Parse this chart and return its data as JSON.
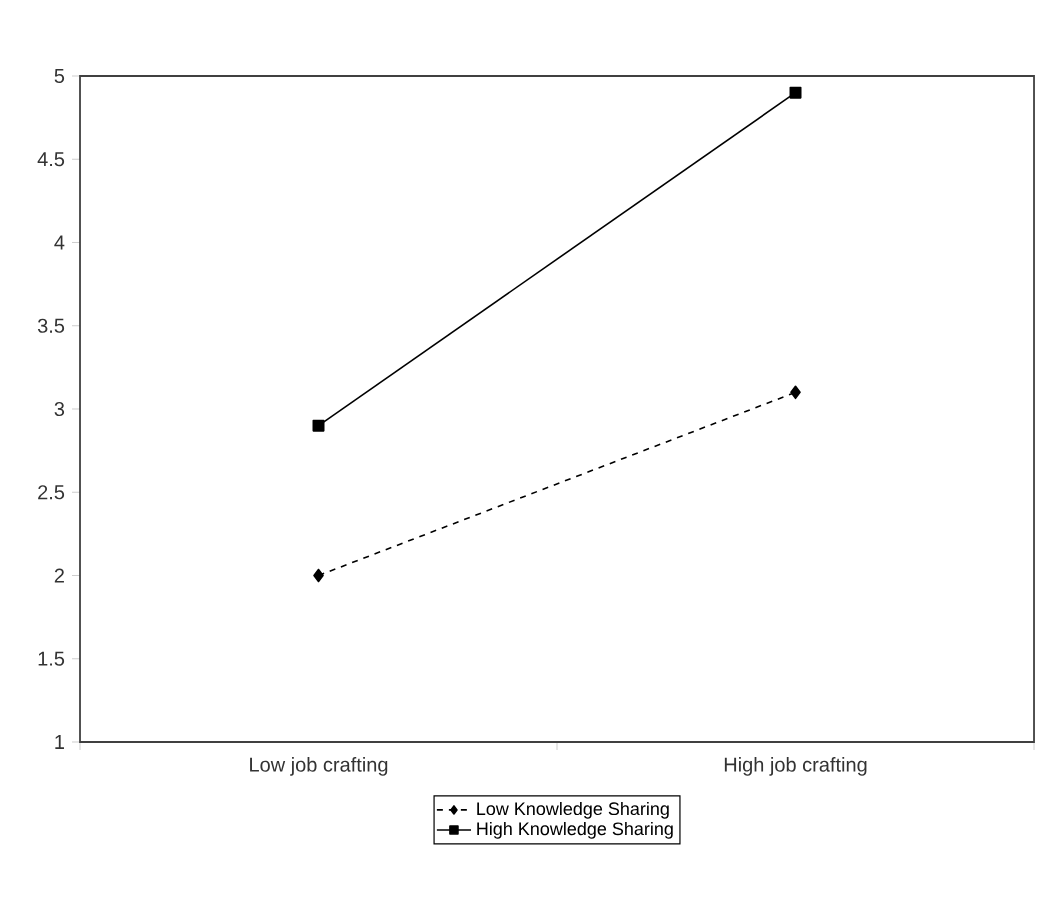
{
  "chart_data": {
    "type": "line",
    "categories": [
      "Low job crafting",
      "High job crafting"
    ],
    "series": [
      {
        "name": "Low Knowledge Sharing",
        "color": "#000000",
        "values": [
          2.0,
          3.1
        ],
        "marker": "diamond",
        "line_style": "dashed"
      },
      {
        "name": "High Knowledge Sharing",
        "color": "#000000",
        "values": [
          2.9,
          4.9
        ],
        "marker": "square",
        "line_style": "solid"
      }
    ],
    "ylim": [
      1,
      5
    ],
    "yticks": [
      1,
      1.5,
      2,
      2.5,
      3,
      3.5,
      4,
      4.5,
      5
    ],
    "grid": false,
    "legend": "bottom"
  }
}
